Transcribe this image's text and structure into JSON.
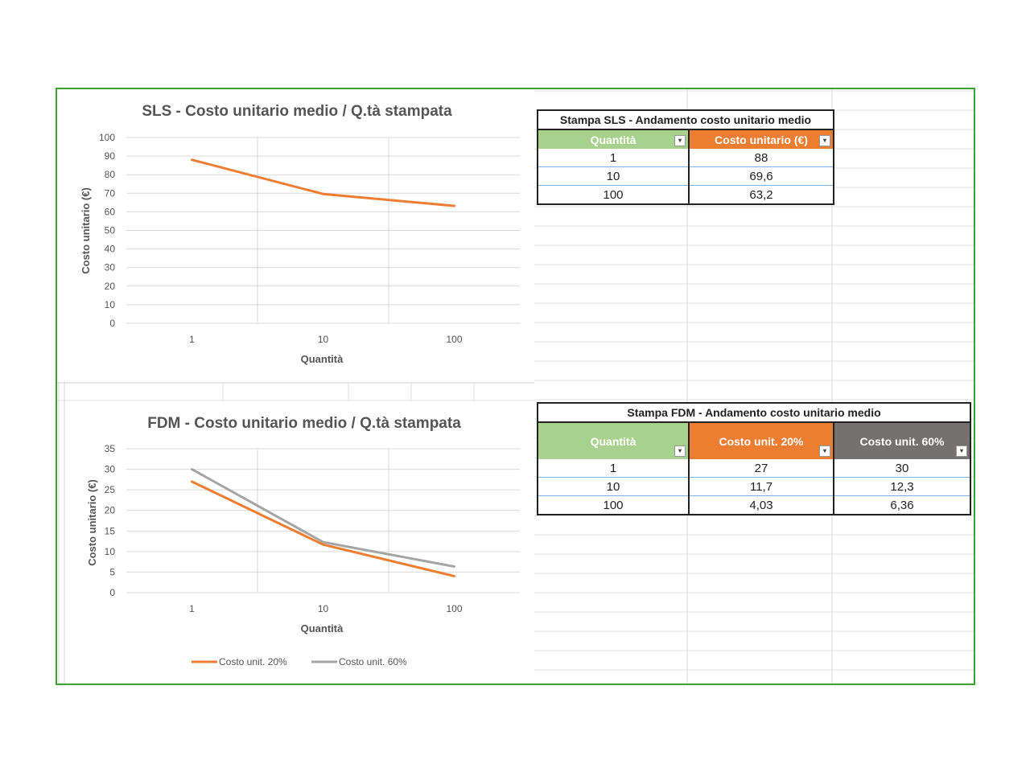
{
  "colors": {
    "orange": "#ed7d31",
    "gray": "#a5a5a5",
    "green_header": "#a9d18e",
    "gray_header": "#767171",
    "frame": "#3aa132"
  },
  "sls_chart": {
    "title": "SLS - Costo unitario medio / Q.tà stampata",
    "xlabel": "Quantità",
    "ylabel": "Costo unitario (€)",
    "y_ticks": [
      "0",
      "10",
      "20",
      "30",
      "40",
      "50",
      "60",
      "70",
      "80",
      "90",
      "100"
    ],
    "x_ticks": [
      "1",
      "10",
      "100"
    ]
  },
  "fdm_chart": {
    "title": "FDM - Costo unitario medio / Q.tà stampata",
    "xlabel": "Quantità",
    "ylabel": "Costo unitario (€)",
    "y_ticks": [
      "0",
      "5",
      "10",
      "15",
      "20",
      "25",
      "30",
      "35"
    ],
    "x_ticks": [
      "1",
      "10",
      "100"
    ],
    "legend": [
      "Costo unit. 20%",
      "Costo unit. 60%"
    ]
  },
  "chart_data": [
    {
      "type": "line",
      "title": "SLS - Costo unitario medio / Q.tà stampata",
      "xlabel": "Quantità",
      "ylabel": "Costo unitario (€)",
      "categories": [
        "1",
        "10",
        "100"
      ],
      "series": [
        {
          "values": [
            88,
            69.6,
            63.2
          ],
          "color": "#ed7d31"
        }
      ],
      "ylim": [
        0,
        100
      ],
      "grid": true
    },
    {
      "type": "line",
      "title": "FDM - Costo unitario medio / Q.tà stampata",
      "xlabel": "Quantità",
      "ylabel": "Costo unitario (€)",
      "categories": [
        "1",
        "10",
        "100"
      ],
      "series": [
        {
          "name": "Costo unit. 20%",
          "values": [
            27,
            11.7,
            4.03
          ],
          "color": "#ed7d31"
        },
        {
          "name": "Costo unit. 60%",
          "values": [
            30,
            12.3,
            6.36
          ],
          "color": "#a5a5a5"
        }
      ],
      "ylim": [
        0,
        35
      ],
      "grid": true,
      "legend": "bottom"
    }
  ],
  "sls_table": {
    "caption": "Stampa SLS - Andamento costo unitario medio",
    "headers": [
      "Quantità",
      "Costo unitario (€)"
    ],
    "rows": [
      [
        "1",
        "88"
      ],
      [
        "10",
        "69,6"
      ],
      [
        "100",
        "63,2"
      ]
    ]
  },
  "fdm_table": {
    "caption": "Stampa FDM - Andamento costo unitario medio",
    "headers": [
      "Quantità",
      "Costo unit. 20%",
      "Costo unit. 60%"
    ],
    "rows": [
      [
        "1",
        "27",
        "30"
      ],
      [
        "10",
        "11,7",
        "12,3"
      ],
      [
        "100",
        "4,03",
        "6,36"
      ]
    ]
  },
  "filter_icon": "▾"
}
